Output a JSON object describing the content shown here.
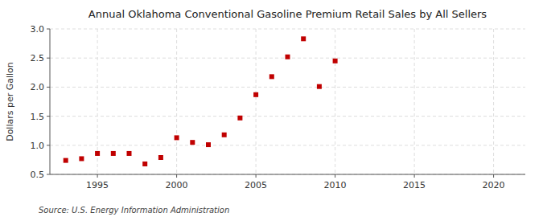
{
  "chart_data": {
    "type": "scatter",
    "title": "Annual Oklahoma Conventional Gasoline Premium Retail Sales by All Sellers",
    "y_label": "Dollars per Gallon",
    "source": "Source: U.S. Energy Information Administration",
    "x": [
      1993,
      1994,
      1995,
      1996,
      1997,
      1998,
      1999,
      2000,
      2001,
      2002,
      2003,
      2004,
      2005,
      2006,
      2007,
      2008,
      2009,
      2010
    ],
    "values": [
      0.74,
      0.77,
      0.86,
      0.86,
      0.86,
      0.68,
      0.79,
      1.13,
      1.05,
      1.01,
      1.18,
      1.47,
      1.87,
      2.18,
      2.52,
      2.83,
      2.01,
      2.45
    ],
    "color": "#c00000",
    "marker": "square",
    "xlim": [
      1992,
      2022
    ],
    "xticks": [
      1995,
      2000,
      2005,
      2010,
      2015,
      2020
    ],
    "ylim": [
      0.5,
      3.0
    ],
    "yticks": [
      0.5,
      {
        "value": 1.0,
        "label": "1.0"
      },
      1.5,
      {
        "value": 2.0,
        "label": "2.0"
      },
      2.5,
      {
        "value": 3.0,
        "label": "3.0"
      }
    ],
    "grid": true
  }
}
